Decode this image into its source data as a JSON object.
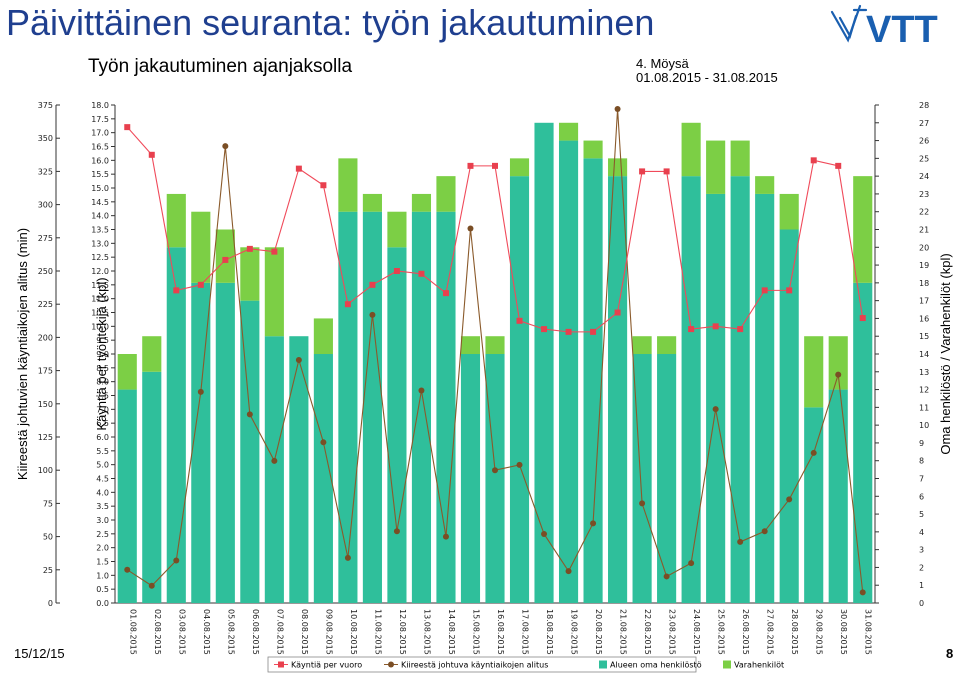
{
  "slide": {
    "title": "Päivittäinen seuranta: työn jakautuminen",
    "subtitle": "Työn jakautuminen ajanjaksolla",
    "unit": "4. Möysä",
    "period": "01.08.2015 - 31.08.2015",
    "footer_date": "15/12/15",
    "page_number": "8",
    "logo_text": "VTT"
  },
  "colors": {
    "title": "#1f3f8f",
    "own_staff": "#2fbf9b",
    "substitutes": "#7ccf45",
    "workers_line": "#f04a5a",
    "workers_marker": "#e8404e",
    "urgent_line": "#8a5a2b",
    "urgent_marker": "#7a4e25",
    "logo": "#1a5fb0"
  },
  "chart_data": {
    "type": "bar",
    "stacked": true,
    "categories": [
      "01.08.2015",
      "02.08.2015",
      "03.08.2015",
      "04.08.2015",
      "05.08.2015",
      "06.08.2015",
      "07.08.2015",
      "08.08.2015",
      "09.08.2015",
      "10.08.2015",
      "11.08.2015",
      "12.08.2015",
      "13.08.2015",
      "14.08.2015",
      "15.08.2015",
      "16.08.2015",
      "17.08.2015",
      "18.08.2015",
      "19.08.2015",
      "20.08.2015",
      "21.08.2015",
      "22.08.2015",
      "23.08.2015",
      "24.08.2015",
      "25.08.2015",
      "26.08.2015",
      "27.08.2015",
      "28.08.2015",
      "29.08.2015",
      "30.08.2015",
      "31.08.2015"
    ],
    "axes": {
      "left_outer": {
        "label": "Kiireestä johtuvien käyntiaikojen alitus (min)",
        "min": 0,
        "max": 375,
        "ticks": [
          0,
          25,
          50,
          75,
          100,
          125,
          150,
          175,
          200,
          225,
          250,
          275,
          300,
          325,
          350,
          375
        ]
      },
      "left_inner": {
        "label": "Käyntiä per työntekijä (kpl)",
        "min": 0,
        "max": 18,
        "step": 0.5
      },
      "right": {
        "label": "Oma henkilöstö / Varahenkilöt (kpl)",
        "min": 0,
        "max": 28,
        "step": 1
      }
    },
    "series": [
      {
        "name": "Alueen oma henkilöstö",
        "kind": "bar",
        "axis": "right",
        "values": [
          12,
          13,
          20,
          18,
          18,
          17,
          15,
          15,
          14,
          22,
          22,
          20,
          22,
          22,
          14,
          14,
          24,
          27,
          26,
          25,
          24,
          14,
          14,
          24,
          23,
          24,
          23,
          21,
          11,
          12,
          18
        ]
      },
      {
        "name": "Varahenkilöt",
        "kind": "bar",
        "axis": "right",
        "values": [
          2,
          2,
          3,
          4,
          3,
          3,
          5,
          0,
          2,
          3,
          1,
          2,
          1,
          2,
          1,
          1,
          1,
          0,
          1,
          1,
          1,
          1,
          1,
          3,
          3,
          2,
          1,
          2,
          4,
          3,
          6
        ]
      },
      {
        "name": "Käyntiä per vuoro",
        "kind": "line",
        "axis": "left_inner",
        "values": [
          17.2,
          16.2,
          11.3,
          11.5,
          12.4,
          12.8,
          12.7,
          15.7,
          15.1,
          10.8,
          11.5,
          12.0,
          11.9,
          11.2,
          15.8,
          15.8,
          10.2,
          9.9,
          9.8,
          9.8,
          10.5,
          15.6,
          15.6,
          9.9,
          10.0,
          9.9,
          11.3,
          11.3,
          16.0,
          15.8,
          10.3
        ]
      },
      {
        "name": "Kiireestä johtuva käyntiaikojen alitus",
        "kind": "line",
        "axis": "left_outer",
        "values": [
          25,
          13,
          32,
          159,
          344,
          142,
          107,
          183,
          121,
          34,
          217,
          54,
          160,
          50,
          282,
          100,
          104,
          52,
          24,
          60,
          372,
          75,
          20,
          30,
          146,
          46,
          54,
          78,
          113,
          172,
          8
        ]
      }
    ],
    "legend": {
      "position": "bottom",
      "entries": [
        "Käyntiä per vuoro",
        "Kiireestä johtuva käyntiaikojen alitus",
        "Alueen oma henkilöstö",
        "Varahenkilöt"
      ]
    },
    "grid": false
  }
}
